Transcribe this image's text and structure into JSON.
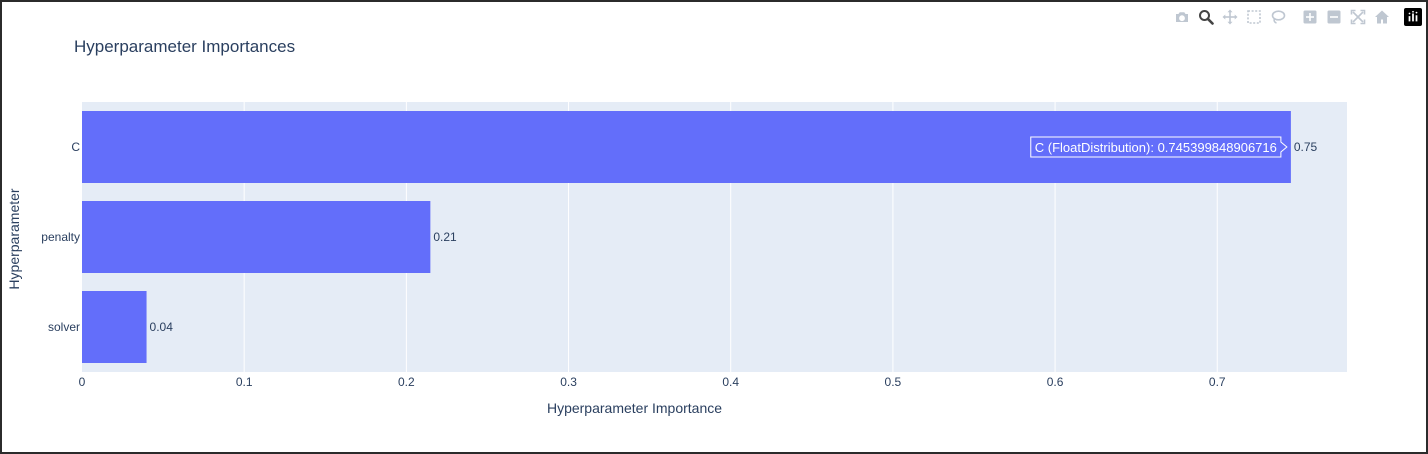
{
  "chart_data": {
    "type": "bar",
    "orientation": "horizontal",
    "title": "Hyperparameter Importances",
    "xlabel": "Hyperparameter Importance",
    "ylabel": "Hyperparameter",
    "xlim": [
      0,
      0.78
    ],
    "x_ticks": [
      "0",
      "0.1",
      "0.2",
      "0.3",
      "0.4",
      "0.5",
      "0.6",
      "0.7"
    ],
    "x_tick_values": [
      0,
      0.1,
      0.2,
      0.3,
      0.4,
      0.5,
      0.6,
      0.7
    ],
    "categories": [
      "C",
      "penalty",
      "solver"
    ],
    "values": [
      0.7454,
      0.2148,
      0.0398
    ],
    "data_labels": [
      "0.75",
      "0.21",
      "0.04"
    ],
    "bar_color": "#636efa",
    "plot_bg": "#e5ecf6",
    "grid": true,
    "hover": {
      "category_index": 0,
      "text": "C (FloatDistribution): 0.745399848906716"
    }
  },
  "modebar": {
    "buttons": [
      {
        "name": "camera-icon",
        "group": 1
      },
      {
        "name": "zoom-icon",
        "group": 1,
        "active": true
      },
      {
        "name": "pan-icon",
        "group": 1
      },
      {
        "name": "box-select-icon",
        "group": 1
      },
      {
        "name": "lasso-select-icon",
        "group": 1
      },
      {
        "name": "zoom-in-icon",
        "group": 2
      },
      {
        "name": "zoom-out-icon",
        "group": 2
      },
      {
        "name": "autoscale-icon",
        "group": 2
      },
      {
        "name": "reset-axes-icon",
        "group": 2
      },
      {
        "name": "plotly-logo-icon",
        "group": 3
      }
    ],
    "icon_color": "#bfc7d1",
    "active_color": "#444444"
  }
}
